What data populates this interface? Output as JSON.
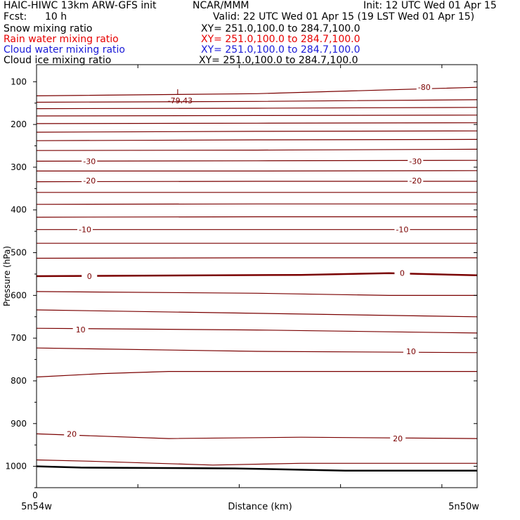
{
  "header": {
    "title": "HAIC-HIWC 13km ARW-GFS init",
    "org": "NCAR/MMM",
    "init": "Init: 12 UTC Wed 01 Apr 15",
    "fcst_label": "Fcst:",
    "fcst_value": "10 h",
    "valid": "Valid: 22 UTC Wed 01 Apr 15 (19 LST Wed 01 Apr 15)"
  },
  "fields": [
    {
      "name": "Snow mixing ratio",
      "xy": "XY= 251.0,100.0 to 284.7,100.0",
      "color": "#000000"
    },
    {
      "name": "Rain water mixing ratio",
      "xy": "XY= 251.0,100.0 to 284.7,100.0",
      "color": "#e60000"
    },
    {
      "name": "Cloud water mixing ratio",
      "xy": "XY= 251.0,100.0 to 284.7,100.0",
      "color": "#1a1ad6"
    },
    {
      "name": "Cloud ice mixing ratio",
      "xy": "XY= 251.0,100.0 to 284.7,100.0",
      "color": "#000000"
    }
  ],
  "chart_data": {
    "type": "line",
    "ylabel": "Pressure (hPa)",
    "xlabel": "Distance (km)",
    "y_reversed": true,
    "ylim": [
      1050,
      60
    ],
    "xlim": [
      0,
      1
    ],
    "yticks": [
      100,
      200,
      300,
      400,
      500,
      600,
      700,
      800,
      900,
      1000
    ],
    "x_origin_label": "0",
    "x_left_label": "5n54w",
    "x_right_label": "5n50w",
    "contour_color": "#7a0000",
    "min_marker": {
      "symbol": "L",
      "value": "-79.43",
      "x": 0.31,
      "p": 103
    },
    "contours": [
      {
        "x": [
          0,
          0.5,
          1
        ],
        "p": [
          133,
          128,
          113
        ]
      },
      {
        "x": [
          0,
          0.5,
          1
        ],
        "p": [
          148,
          146,
          142
        ]
      },
      {
        "x": [
          0,
          0.5,
          1
        ],
        "p": [
          163,
          162,
          160
        ]
      },
      {
        "x": [
          0,
          0.5,
          1
        ],
        "p": [
          180,
          179,
          178
        ]
      },
      {
        "x": [
          0,
          0.5,
          1
        ],
        "p": [
          198,
          197,
          196
        ]
      },
      {
        "x": [
          0,
          0.5,
          1
        ],
        "p": [
          218,
          216,
          215
        ]
      },
      {
        "x": [
          0,
          0.5,
          1
        ],
        "p": [
          238,
          236,
          235
        ]
      },
      {
        "x": [
          0,
          0.5,
          1
        ],
        "p": [
          261,
          260,
          258
        ]
      },
      {
        "x": [
          0,
          0.5,
          1
        ],
        "p": [
          286,
          285,
          284
        ]
      },
      {
        "x": [
          0,
          0.5,
          1
        ],
        "p": [
          309,
          309,
          308
        ]
      },
      {
        "x": [
          0,
          0.5,
          1
        ],
        "p": [
          334,
          333,
          333
        ]
      },
      {
        "x": [
          0,
          0.5,
          1
        ],
        "p": [
          359,
          359,
          359
        ]
      },
      {
        "x": [
          0,
          0.5,
          1
        ],
        "p": [
          387,
          386,
          386
        ]
      },
      {
        "x": [
          0,
          0.5,
          1
        ],
        "p": [
          417,
          416,
          416
        ]
      },
      {
        "x": [
          0,
          0.5,
          1
        ],
        "p": [
          446,
          446,
          446
        ]
      },
      {
        "x": [
          0,
          0.5,
          1
        ],
        "p": [
          478,
          478,
          478
        ]
      },
      {
        "x": [
          0,
          0.5,
          1
        ],
        "p": [
          513,
          512,
          512
        ]
      },
      {
        "x": [
          0,
          0.6,
          0.8,
          1
        ],
        "p": [
          555,
          552,
          548,
          553
        ],
        "bold": true
      },
      {
        "x": [
          0,
          0.5,
          0.8,
          1
        ],
        "p": [
          591,
          595,
          600,
          600
        ]
      },
      {
        "x": [
          0,
          0.5,
          1
        ],
        "p": [
          634,
          642,
          650
        ]
      },
      {
        "x": [
          0,
          0.5,
          1
        ],
        "p": [
          677,
          681,
          688
        ]
      },
      {
        "x": [
          0,
          0.5,
          1
        ],
        "p": [
          723,
          731,
          734
        ]
      },
      {
        "x": [
          0,
          0.15,
          0.3,
          1
        ],
        "p": [
          791,
          783,
          778,
          778
        ]
      },
      {
        "x": [
          0,
          0.3,
          0.6,
          1
        ],
        "p": [
          924,
          935,
          932,
          935
        ]
      },
      {
        "x": [
          0,
          0.12,
          0.4,
          0.6,
          1
        ],
        "p": [
          985,
          988,
          997,
          993,
          993
        ]
      },
      {
        "x": [
          0,
          0.1,
          0.45,
          0.7,
          1
        ],
        "p": [
          1000,
          1003,
          1005,
          1010,
          1010
        ],
        "bold": true,
        "color": "#000000"
      }
    ],
    "contour_labels": [
      {
        "text": "-80",
        "x": 0.88,
        "p": 113
      },
      {
        "text": "-30",
        "x": 0.12,
        "p": 286
      },
      {
        "text": "-30",
        "x": 0.86,
        "p": 286
      },
      {
        "text": "-20",
        "x": 0.12,
        "p": 331
      },
      {
        "text": "-20",
        "x": 0.86,
        "p": 331
      },
      {
        "text": "-10",
        "x": 0.11,
        "p": 446
      },
      {
        "text": "-10",
        "x": 0.83,
        "p": 446
      },
      {
        "text": "0",
        "x": 0.12,
        "p": 555
      },
      {
        "text": "0",
        "x": 0.83,
        "p": 548
      },
      {
        "text": "10",
        "x": 0.1,
        "p": 680
      },
      {
        "text": "10",
        "x": 0.85,
        "p": 731
      },
      {
        "text": "20",
        "x": 0.08,
        "p": 924
      },
      {
        "text": "20",
        "x": 0.82,
        "p": 935
      }
    ]
  }
}
